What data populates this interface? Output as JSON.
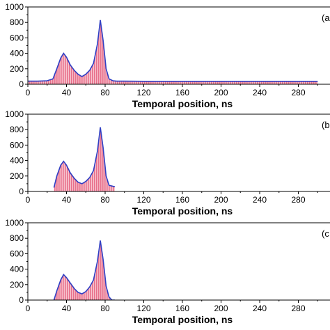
{
  "chart_data": [
    {
      "type": "area",
      "panel_label": "(a",
      "xlabel": "Temporal position, ns",
      "ylabel": "",
      "xlim": [
        0,
        300
      ],
      "ylim": [
        0,
        1000
      ],
      "xticks": [
        0,
        40,
        80,
        120,
        160,
        200,
        240,
        280
      ],
      "yticks": [
        0,
        200,
        400,
        600,
        800,
        1000
      ],
      "fill_color": "#e8708c",
      "line_color": "#2f3fc4",
      "series": [
        {
          "x": [
            0,
            10,
            20,
            26,
            30,
            34,
            37,
            40,
            44,
            48,
            52,
            56,
            60,
            64,
            68,
            72,
            75,
            78,
            81,
            84,
            88,
            92,
            100,
            120,
            160,
            200,
            240,
            280,
            300
          ],
          "values": [
            40,
            40,
            45,
            70,
            200,
            340,
            400,
            350,
            250,
            180,
            130,
            100,
            130,
            180,
            270,
            520,
            830,
            560,
            200,
            70,
            45,
            40,
            40,
            38,
            38,
            38,
            38,
            38,
            38
          ]
        }
      ]
    },
    {
      "type": "area",
      "panel_label": "(b",
      "xlabel": "Temporal position, ns",
      "ylabel": "",
      "xlim": [
        0,
        300
      ],
      "ylim": [
        0,
        1000
      ],
      "xticks": [
        0,
        40,
        80,
        120,
        160,
        200,
        240,
        280
      ],
      "yticks": [
        0,
        200,
        400,
        600,
        800,
        1000
      ],
      "fill_color": "#e8708c",
      "line_color": "#2f3fc4",
      "series": [
        {
          "x": [
            27,
            30,
            34,
            37,
            40,
            44,
            48,
            52,
            56,
            60,
            64,
            68,
            72,
            75,
            78,
            81,
            84,
            87,
            90
          ],
          "values": [
            50,
            200,
            340,
            390,
            340,
            240,
            170,
            120,
            100,
            130,
            180,
            270,
            520,
            830,
            560,
            200,
            80,
            70,
            60
          ]
        }
      ]
    },
    {
      "type": "area",
      "panel_label": "(c",
      "xlabel": "Temporal position, ns",
      "ylabel": "",
      "xlim": [
        0,
        300
      ],
      "ylim": [
        0,
        1000
      ],
      "xticks": [
        0,
        40,
        80,
        120,
        160,
        200,
        240,
        280
      ],
      "yticks": [
        0,
        200,
        400,
        600,
        800,
        1000
      ],
      "fill_color": "#e8708c",
      "line_color": "#2f3fc4",
      "series": [
        {
          "x": [
            27,
            30,
            34,
            37,
            40,
            44,
            48,
            52,
            56,
            60,
            64,
            68,
            72,
            75,
            78,
            81,
            84,
            87,
            90
          ],
          "values": [
            0,
            120,
            260,
            330,
            290,
            220,
            150,
            100,
            80,
            110,
            170,
            260,
            500,
            770,
            520,
            180,
            40,
            0,
            0
          ]
        }
      ]
    }
  ]
}
